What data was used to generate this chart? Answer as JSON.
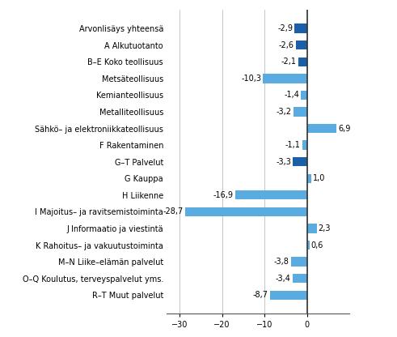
{
  "categories": [
    "Arvonlisäys yhteensä",
    "A Alkutuotanto",
    "B–E Koko teollisuus",
    "Metsäteollisuus",
    "Kemianteollisuus",
    "Metalliteollisuus",
    "Sähkö– ja elektroniikkateollisuus",
    "F Rakentaminen",
    "G–T Palvelut",
    "G Kauppa",
    "H Liikenne",
    "I Majoitus– ja ravitsemistoiminta",
    "J Informaatio ja viestintä",
    "K Rahoitus– ja vakuutustoiminta",
    "M–N Liike–elämän palvelut",
    "O–Q Koulutus, terveyspalvelut yms.",
    "R–T Muut palvelut"
  ],
  "values": [
    -2.9,
    -2.6,
    -2.1,
    -10.3,
    -1.4,
    -3.2,
    6.9,
    -1.1,
    -3.3,
    1.0,
    -16.9,
    -28.7,
    2.3,
    0.6,
    -3.8,
    -3.4,
    -8.7
  ],
  "bar_colors": [
    "#1a5fa8",
    "#1a5fa8",
    "#1a5fa8",
    "#5aabdf",
    "#5aabdf",
    "#5aabdf",
    "#5aabdf",
    "#5aabdf",
    "#1a5fa8",
    "#5aabdf",
    "#5aabdf",
    "#5aabdf",
    "#5aabdf",
    "#5aabdf",
    "#5aabdf",
    "#5aabdf",
    "#5aabdf"
  ],
  "xlim": [
    -33,
    10
  ],
  "xticks": [
    -30,
    -20,
    -10,
    0
  ],
  "background_color": "#ffffff",
  "label_fontsize": 7.0,
  "value_fontsize": 7.0,
  "bar_height": 0.55
}
